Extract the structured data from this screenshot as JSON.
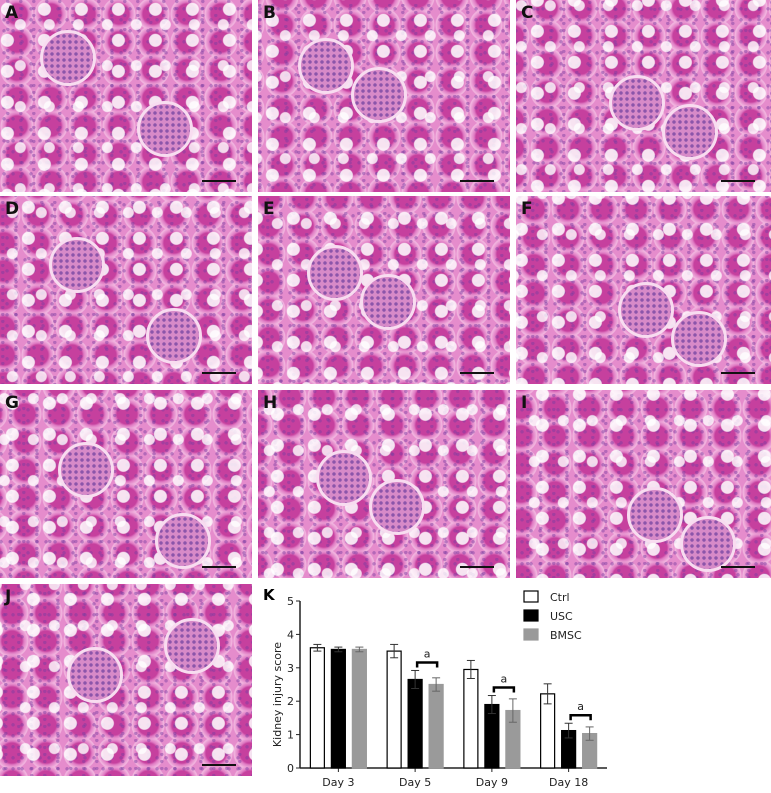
{
  "panels": [
    "A",
    "B",
    "C",
    "D",
    "E",
    "F",
    "G",
    "H",
    "I",
    "J"
  ],
  "chart_label": "K",
  "chart_data": {
    "type": "bar",
    "categories": [
      "Day 3",
      "Day 5",
      "Day 9",
      "Day 18"
    ],
    "ylabel": "Kidney injury score",
    "xlabel": "",
    "ylim": [
      0,
      5
    ],
    "yticks": [
      0,
      1,
      2,
      3,
      4,
      5
    ],
    "series": [
      {
        "name": "Ctrl",
        "color": "#ffffff",
        "values": [
          3.6,
          3.5,
          2.95,
          2.22
        ],
        "errors": [
          0.1,
          0.2,
          0.27,
          0.3
        ]
      },
      {
        "name": "USC",
        "color": "#000000",
        "values": [
          3.55,
          2.65,
          1.9,
          1.12
        ],
        "errors": [
          0.07,
          0.27,
          0.27,
          0.22
        ]
      },
      {
        "name": "BMSC",
        "color": "#9a9a9a",
        "values": [
          3.55,
          2.5,
          1.72,
          1.03
        ],
        "errors": [
          0.07,
          0.2,
          0.35,
          0.2
        ]
      }
    ],
    "annotations": [
      {
        "category": "Day 5",
        "text": "a"
      },
      {
        "category": "Day 9",
        "text": "a"
      },
      {
        "category": "Day 18",
        "text": "a"
      }
    ],
    "legend": "top-right",
    "grid": false
  }
}
